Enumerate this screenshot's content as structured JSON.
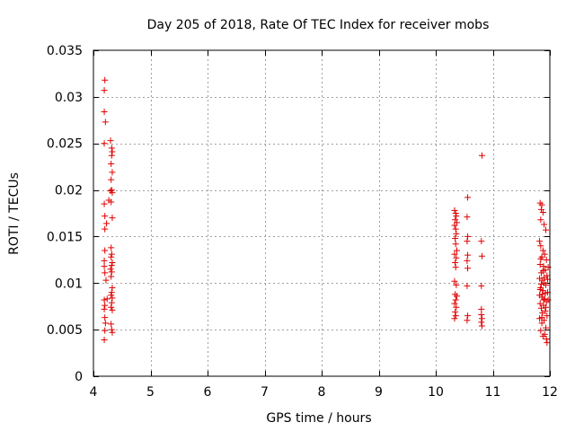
{
  "chart_data": {
    "type": "scatter",
    "title": "Day 205 of 2018, Rate Of TEC Index for receiver mobs",
    "xlabel": "GPS time / hours",
    "ylabel": "ROTI / TECUs",
    "xlim": [
      4,
      12
    ],
    "ylim": [
      0,
      0.035
    ],
    "xticks": [
      4,
      5,
      6,
      7,
      8,
      9,
      10,
      11,
      12
    ],
    "yticks": [
      0,
      0.005,
      0.01,
      0.015,
      0.02,
      0.025,
      0.03,
      0.035
    ],
    "ytick_labels": [
      "0",
      "0.005",
      "0.01",
      "0.015",
      "0.02",
      "0.025",
      "0.03",
      "0.035"
    ],
    "grid": true,
    "marker": "+",
    "color": "#e00000",
    "series": [
      {
        "name": "ROTI",
        "points": [
          [
            4.2,
            0.0318
          ],
          [
            4.19,
            0.0307
          ],
          [
            4.19,
            0.0284
          ],
          [
            4.21,
            0.0273
          ],
          [
            4.19,
            0.025
          ],
          [
            4.19,
            0.0185
          ],
          [
            4.2,
            0.0172
          ],
          [
            4.2,
            0.0158
          ],
          [
            4.2,
            0.0135
          ],
          [
            4.19,
            0.0124
          ],
          [
            4.19,
            0.0118
          ],
          [
            4.2,
            0.0111
          ],
          [
            4.19,
            0.0082
          ],
          [
            4.2,
            0.0076
          ],
          [
            4.19,
            0.0072
          ],
          [
            4.2,
            0.0063
          ],
          [
            4.21,
            0.0057
          ],
          [
            4.2,
            0.0049
          ],
          [
            4.19,
            0.0039
          ],
          [
            4.23,
            0.0164
          ],
          [
            4.27,
            0.0189
          ],
          [
            4.22,
            0.0103
          ],
          [
            4.24,
            0.0083
          ],
          [
            4.3,
            0.0253
          ],
          [
            4.32,
            0.0245
          ],
          [
            4.33,
            0.0241
          ],
          [
            4.32,
            0.0237
          ],
          [
            4.31,
            0.0228
          ],
          [
            4.33,
            0.0219
          ],
          [
            4.31,
            0.0211
          ],
          [
            4.32,
            0.02
          ],
          [
            4.33,
            0.0197
          ],
          [
            4.3,
            0.0199
          ],
          [
            4.31,
            0.0187
          ],
          [
            4.33,
            0.017
          ],
          [
            4.31,
            0.0138
          ],
          [
            4.32,
            0.0131
          ],
          [
            4.31,
            0.0128
          ],
          [
            4.33,
            0.0122
          ],
          [
            4.32,
            0.0119
          ],
          [
            4.3,
            0.0115
          ],
          [
            4.32,
            0.0112
          ],
          [
            4.31,
            0.0107
          ],
          [
            4.33,
            0.0095
          ],
          [
            4.32,
            0.009
          ],
          [
            4.31,
            0.0087
          ],
          [
            4.33,
            0.0084
          ],
          [
            4.32,
            0.0079
          ],
          [
            4.31,
            0.0074
          ],
          [
            4.33,
            0.0071
          ],
          [
            4.31,
            0.0056
          ],
          [
            4.32,
            0.005
          ],
          [
            4.33,
            0.0047
          ],
          [
            10.33,
            0.0178
          ],
          [
            10.35,
            0.0175
          ],
          [
            10.36,
            0.0172
          ],
          [
            10.34,
            0.0168
          ],
          [
            10.37,
            0.0165
          ],
          [
            10.33,
            0.0162
          ],
          [
            10.35,
            0.0158
          ],
          [
            10.36,
            0.0153
          ],
          [
            10.34,
            0.0148
          ],
          [
            10.35,
            0.0142
          ],
          [
            10.37,
            0.0135
          ],
          [
            10.33,
            0.0131
          ],
          [
            10.36,
            0.0127
          ],
          [
            10.34,
            0.0122
          ],
          [
            10.35,
            0.0117
          ],
          [
            10.33,
            0.0102
          ],
          [
            10.36,
            0.0098
          ],
          [
            10.34,
            0.0088
          ],
          [
            10.37,
            0.0086
          ],
          [
            10.35,
            0.0082
          ],
          [
            10.33,
            0.0078
          ],
          [
            10.36,
            0.0074
          ],
          [
            10.34,
            0.0069
          ],
          [
            10.35,
            0.0065
          ],
          [
            10.33,
            0.0062
          ],
          [
            10.56,
            0.0192
          ],
          [
            10.55,
            0.0171
          ],
          [
            10.56,
            0.015
          ],
          [
            10.55,
            0.0145
          ],
          [
            10.56,
            0.013
          ],
          [
            10.55,
            0.0124
          ],
          [
            10.56,
            0.0116
          ],
          [
            10.55,
            0.0097
          ],
          [
            10.56,
            0.0065
          ],
          [
            10.55,
            0.006
          ],
          [
            10.81,
            0.0237
          ],
          [
            10.8,
            0.0145
          ],
          [
            10.81,
            0.0129
          ],
          [
            10.8,
            0.0097
          ],
          [
            10.8,
            0.0072
          ],
          [
            10.8,
            0.0066
          ],
          [
            10.81,
            0.0062
          ],
          [
            10.8,
            0.0058
          ],
          [
            10.81,
            0.0054
          ],
          [
            11.83,
            0.0186
          ],
          [
            11.86,
            0.0184
          ],
          [
            11.85,
            0.0179
          ],
          [
            11.88,
            0.0176
          ],
          [
            11.84,
            0.0168
          ],
          [
            11.9,
            0.0163
          ],
          [
            11.93,
            0.0157
          ],
          [
            11.82,
            0.0145
          ],
          [
            11.84,
            0.014
          ],
          [
            11.88,
            0.0135
          ],
          [
            11.91,
            0.0131
          ],
          [
            11.86,
            0.0128
          ],
          [
            11.94,
            0.0125
          ],
          [
            11.83,
            0.012
          ],
          [
            11.89,
            0.0118
          ],
          [
            11.92,
            0.0114
          ],
          [
            11.85,
            0.0111
          ],
          [
            11.95,
            0.0108
          ],
          [
            11.82,
            0.0105
          ],
          [
            11.87,
            0.0103
          ],
          [
            11.9,
            0.01
          ],
          [
            11.93,
            0.0098
          ],
          [
            11.84,
            0.0095
          ],
          [
            11.88,
            0.0092
          ],
          [
            11.96,
            0.009
          ],
          [
            11.82,
            0.0087
          ],
          [
            11.86,
            0.0085
          ],
          [
            11.91,
            0.0083
          ],
          [
            11.94,
            0.008
          ],
          [
            11.83,
            0.0078
          ],
          [
            11.89,
            0.0076
          ],
          [
            11.85,
            0.0073
          ],
          [
            11.92,
            0.007
          ],
          [
            11.87,
            0.0068
          ],
          [
            11.95,
            0.0065
          ],
          [
            11.82,
            0.0062
          ],
          [
            11.9,
            0.006
          ],
          [
            11.86,
            0.0057
          ],
          [
            11.93,
            0.0052
          ],
          [
            11.84,
            0.0049
          ],
          [
            11.91,
            0.0045
          ],
          [
            11.88,
            0.0043
          ],
          [
            11.94,
            0.004
          ],
          [
            11.95,
            0.0036
          ],
          [
            11.97,
            0.0082
          ],
          [
            11.96,
            0.0104
          ],
          [
            11.97,
            0.0117
          ],
          [
            11.83,
            0.0093
          ],
          [
            11.85,
            0.0099
          ],
          [
            11.87,
            0.0088
          ],
          [
            11.89,
            0.0082
          ],
          [
            11.9,
            0.0106
          ],
          [
            11.86,
            0.0063
          ],
          [
            11.92,
            0.0089
          ],
          [
            11.84,
            0.0126
          ],
          [
            11.88,
            0.0113
          ],
          [
            11.93,
            0.0074
          ]
        ]
      }
    ]
  }
}
